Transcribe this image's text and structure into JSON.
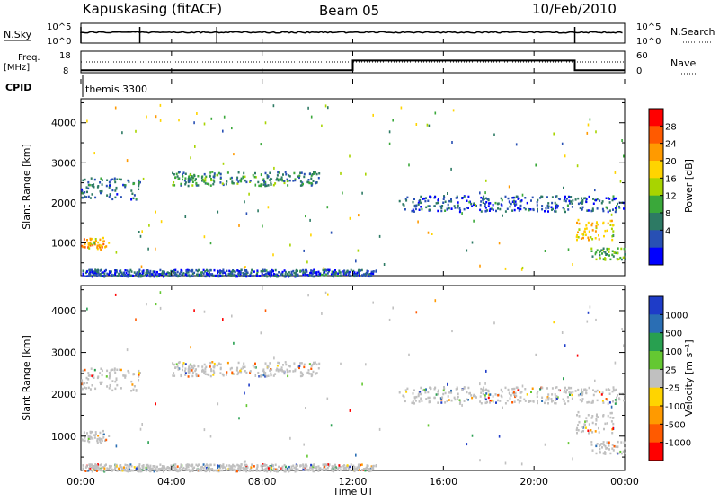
{
  "header": {
    "station": "Kapuskasing (fitACF)",
    "beam": "Beam 05",
    "date": "10/Feb/2010"
  },
  "panel_top": {
    "left_label": "N.Sky",
    "right_label": "N.Search",
    "left_ticks": [
      "10^5",
      "10^0"
    ],
    "right_ticks": [
      "10^5",
      "10^0"
    ]
  },
  "panel_freq": {
    "left_label_line1": "Freq.",
    "left_label_line2": "[MHz]",
    "right_label": "Nave",
    "left_ticks": [
      "18",
      "8"
    ],
    "right_ticks": [
      "60",
      "0"
    ],
    "cpid_label": "CPID",
    "cpid_value": "themis 3300"
  },
  "panel_power": {
    "ylabel": "Slant Range [km]",
    "colorbar_label": "Power [dB]",
    "colorbar_ticks": [
      "28",
      "24",
      "20",
      "16",
      "12",
      "8",
      "4"
    ],
    "colors": [
      "#ff0000",
      "#ff5a00",
      "#ff9a00",
      "#ffd400",
      "#a8d400",
      "#3aa83a",
      "#2d7a64",
      "#2850b4",
      "#0000ff"
    ]
  },
  "panel_velocity": {
    "ylabel": "Slant Range [km]",
    "colorbar_label": "Velocity [m s⁻¹]",
    "colorbar_ticks": [
      "1000",
      "500",
      "100",
      "25",
      "-25",
      "-100",
      "-500",
      "-1000"
    ],
    "colors": [
      "#1e3cc8",
      "#2a6eb4",
      "#28a050",
      "#64c832",
      "#c0c0c0",
      "#ffd400",
      "#ff9a00",
      "#ff5a00",
      "#ff0000"
    ]
  },
  "axes": {
    "xlabel": "Time UT",
    "x_ticks": [
      "00:00",
      "04:00",
      "08:00",
      "12:00",
      "16:00",
      "20:00",
      "00:00"
    ],
    "y_ticks": [
      "4000",
      "3000",
      "2000",
      "1000"
    ]
  },
  "chart_data": {
    "type": "heatmap",
    "title": "Kapuskasing (fitACF) Beam 05 10/Feb/2010",
    "xlabel": "Time UT",
    "ylabel": "Slant Range [km]",
    "xlim": [
      0,
      24
    ],
    "ylim": [
      180,
      4600
    ],
    "series": [
      {
        "name": "Power [dB]",
        "clim": [
          0,
          32
        ]
      },
      {
        "name": "Velocity [m s⁻¹]",
        "clim": [
          -1000,
          1000
        ]
      }
    ],
    "scatter_bands": [
      {
        "t_start": 0.0,
        "t_end": 1.2,
        "range_min": 850,
        "range_max": 1150,
        "power": 22
      },
      {
        "t_start": 0.0,
        "t_end": 2.6,
        "range_min": 2100,
        "range_max": 2650,
        "power": 8
      },
      {
        "t_start": 4.0,
        "t_end": 10.5,
        "range_min": 2450,
        "range_max": 2800,
        "power": 10
      },
      {
        "t_start": 14.0,
        "t_end": 24.0,
        "range_min": 1800,
        "range_max": 2200,
        "power": 6
      },
      {
        "t_start": 21.8,
        "t_end": 23.5,
        "range_min": 1100,
        "range_max": 1600,
        "power": 20
      },
      {
        "t_start": 22.5,
        "t_end": 24.0,
        "range_min": 600,
        "range_max": 900,
        "power": 12
      },
      {
        "t_start": 0.0,
        "t_end": 13.0,
        "range_min": 180,
        "range_max": 350,
        "power": 6
      }
    ],
    "frequency_mhz": [
      {
        "t_start": 0.0,
        "t_end": 12.0,
        "value": 10.0
      },
      {
        "t_start": 12.0,
        "t_end": 21.8,
        "value": 14.5
      },
      {
        "t_start": 21.8,
        "t_end": 24.0,
        "value": 10.0
      }
    ]
  }
}
